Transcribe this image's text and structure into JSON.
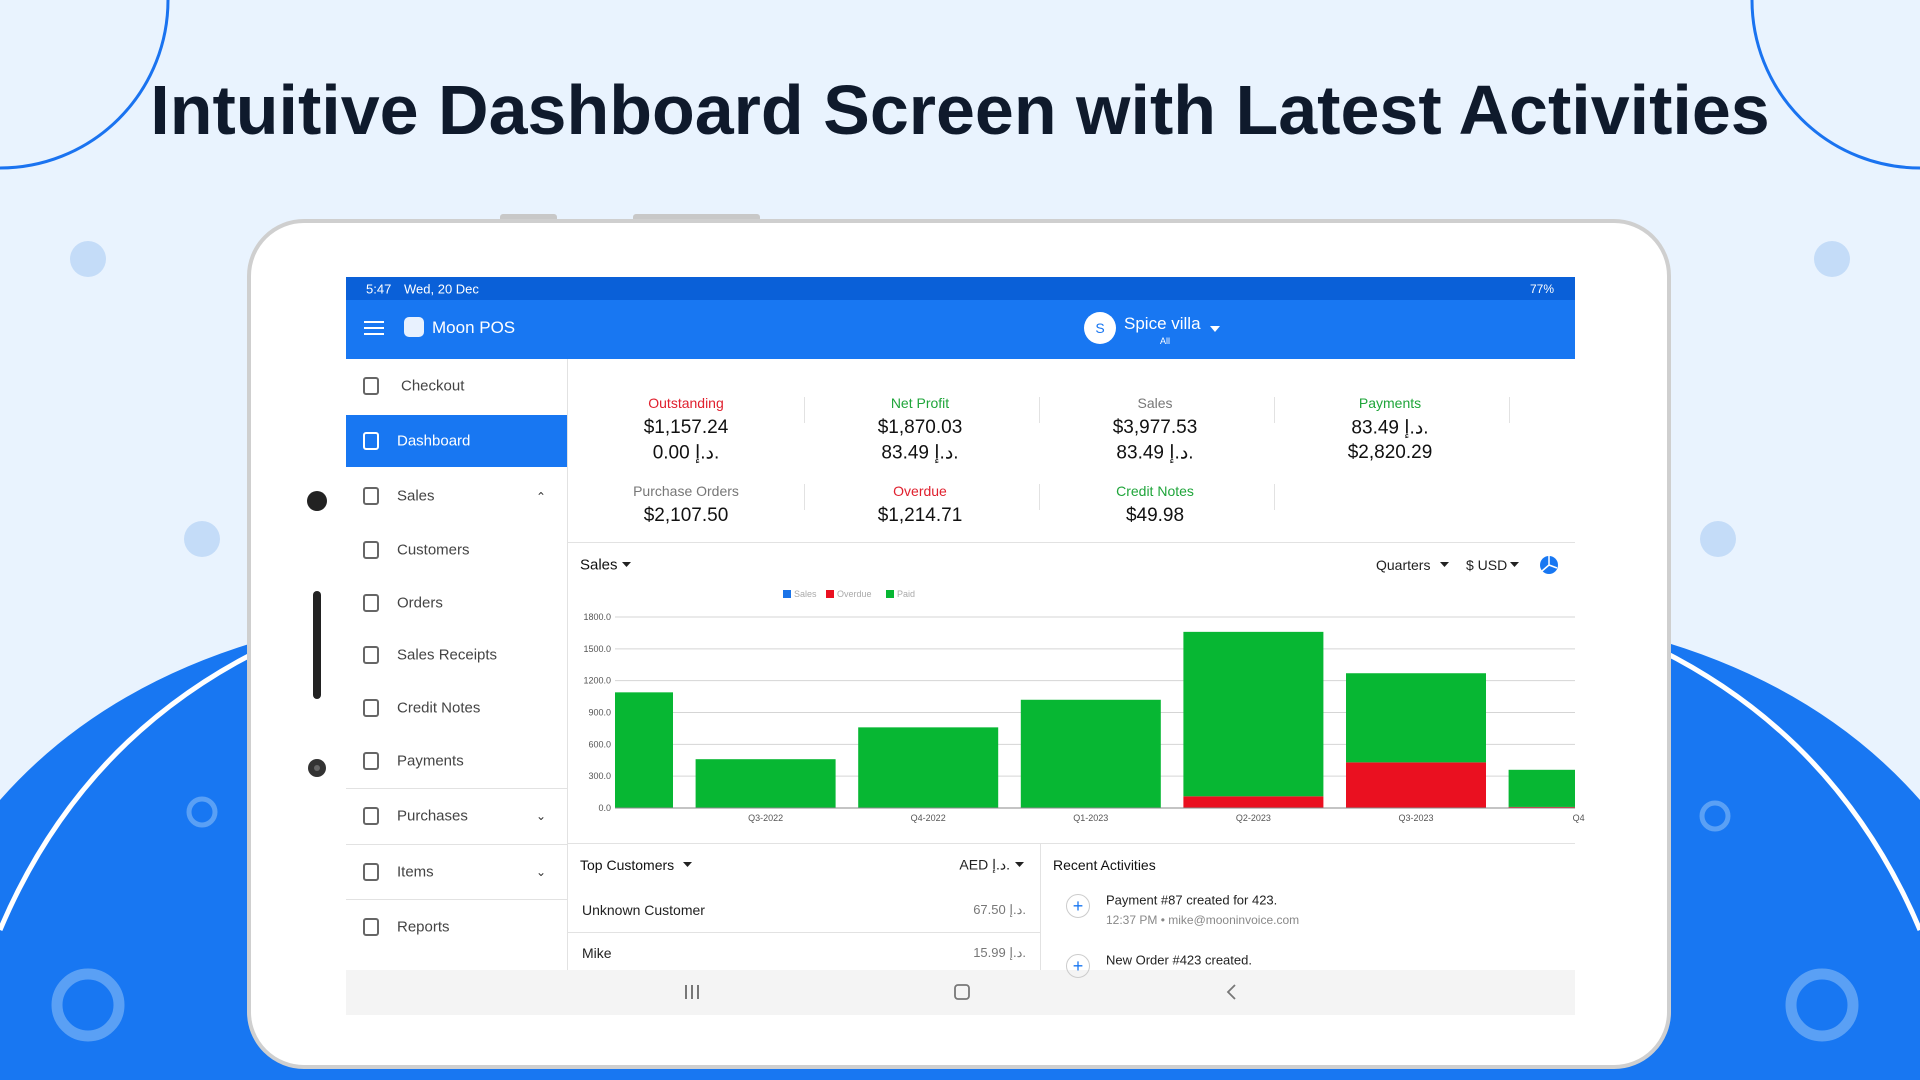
{
  "header": {
    "title": "Intuitive Dashboard Screen with Latest Activities"
  },
  "status_bar": {
    "time": "5:47",
    "date": "Wed, 20 Dec",
    "battery": "77%"
  },
  "app_bar": {
    "app_name": "Moon POS",
    "avatar": "S",
    "store": "Spice villa",
    "store_scope": "All"
  },
  "sidebar": {
    "items": [
      "Checkout",
      "Dashboard",
      "Sales",
      "Customers",
      "Orders",
      "Sales Receipts",
      "Credit Notes",
      "Payments",
      "Purchases",
      "Items",
      "Reports"
    ]
  },
  "summary": {
    "cards": [
      {
        "label": "Outstanding",
        "values": [
          "$1,157.24",
          "0.00 د.إ."
        ]
      },
      {
        "label": "Net Profit",
        "values": [
          "$1,870.03",
          "83.49 د.إ."
        ]
      },
      {
        "label": "Sales",
        "values": [
          "$3,977.53",
          "83.49 د.إ."
        ]
      },
      {
        "label": "Payments",
        "values": [
          "83.49 د.إ.",
          "$2,820.29"
        ]
      },
      {
        "label": "Purchase Orders",
        "values": [
          "$2,107.50"
        ]
      },
      {
        "label": "Overdue",
        "values": [
          "$1,214.71"
        ]
      },
      {
        "label": "Credit Notes",
        "values": [
          "$49.98"
        ]
      }
    ]
  },
  "chart_controls": {
    "title": "Sales",
    "period": "Quarters",
    "currency": "$ USD"
  },
  "chart_data": {
    "type": "bar",
    "stacked": true,
    "categories": [
      null,
      "Q3-2022",
      "Q4-2022",
      "Q1-2023",
      "Q2-2023",
      "Q3-2023",
      "Q4"
    ],
    "series": [
      {
        "name": "Sales",
        "color": "#1a73e8",
        "values": [
          0,
          0,
          0,
          0,
          0,
          0,
          0
        ]
      },
      {
        "name": "Overdue",
        "color": "#ea1020",
        "values": [
          0,
          0,
          0,
          0,
          110,
          430,
          10
        ]
      },
      {
        "name": "Paid",
        "color": "#07b733",
        "values": [
          1090,
          460,
          760,
          1020,
          1550,
          840,
          350
        ]
      }
    ],
    "ylim": [
      0,
      1800
    ],
    "yticks": [
      {
        "value": 0,
        "label": "0.0"
      },
      {
        "value": 300,
        "label": "300.0"
      },
      {
        "value": 600,
        "label": "600.0"
      },
      {
        "value": 900,
        "label": "900.0"
      },
      {
        "value": 1200,
        "label": "1200.0"
      },
      {
        "value": 1500,
        "label": "1500.0"
      },
      {
        "value": 1800,
        "label": "1800.0"
      }
    ],
    "grid": true
  },
  "top_customers": {
    "title": "Top Customers",
    "currency": "AED د.إ.",
    "rows": [
      [
        "Unknown Customer",
        "67.50 د.إ."
      ],
      [
        "Mike",
        "15.99 د.إ."
      ]
    ]
  },
  "recent_activities": {
    "title": "Recent Activities",
    "items": [
      {
        "text": "Payment #87 created for 423.",
        "meta": "12:37 PM • mike@mooninvoice.com"
      },
      {
        "text": "New Order #423 created."
      }
    ]
  }
}
